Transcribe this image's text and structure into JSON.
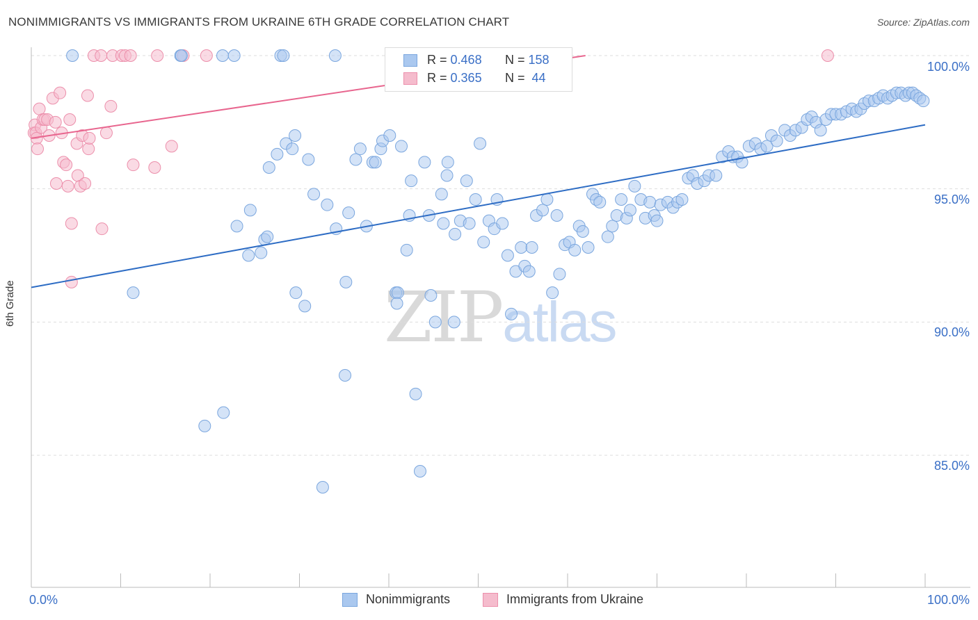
{
  "header": {
    "title": "NONIMMIGRANTS VS IMMIGRANTS FROM UKRAINE 6TH GRADE CORRELATION CHART",
    "source": "Source: ZipAtlas.com"
  },
  "watermark": {
    "zip": "ZIP",
    "atlas": "atlas"
  },
  "legend_top": {
    "rows": [
      {
        "r_label": "R =",
        "r_value": "0.468",
        "n_label": "N =",
        "n_value": "158"
      },
      {
        "r_label": "R =",
        "r_value": "0.365",
        "n_label": "N =",
        "n_value": "44"
      }
    ]
  },
  "legend_bottom": [
    "Nonimmigrants",
    "Immigrants from Ukraine"
  ],
  "colors": {
    "blue_fill": "#aac8ef",
    "blue_stroke": "#7aa6de",
    "blue_line": "#2d6cc4",
    "pink_fill": "#f5bccd",
    "pink_stroke": "#ec8fab",
    "pink_line": "#e8658e",
    "grid": "#dddddd",
    "tick_text": "#3a6fc6"
  },
  "chart_data": {
    "type": "scatter",
    "title": "NONIMMIGRANTS VS IMMIGRANTS FROM UKRAINE 6TH GRADE CORRELATION CHART",
    "xlabel": "",
    "ylabel": "6th Grade",
    "xlim": [
      0,
      100
    ],
    "ylim": [
      80.3,
      100.5
    ],
    "y_ticks": [
      85,
      90,
      95,
      100
    ],
    "y_tick_labels": [
      "85.0%",
      "90.0%",
      "95.0%",
      "100.0%"
    ],
    "x_tick_labels": [
      "0.0%",
      "100.0%"
    ],
    "legend_position": "top-center",
    "series": [
      {
        "name": "Nonimmigrants",
        "color": "#aac8ef",
        "r": 0.468,
        "n": 158,
        "trend": {
          "x": [
            0,
            100
          ],
          "y": [
            91.3,
            97.4
          ]
        },
        "points": [
          [
            4.6,
            100
          ],
          [
            16.7,
            100
          ],
          [
            16.8,
            100
          ],
          [
            21.4,
            100
          ],
          [
            22.7,
            100
          ],
          [
            27.9,
            100
          ],
          [
            28.2,
            100
          ],
          [
            34.0,
            100
          ],
          [
            11.4,
            91.1
          ],
          [
            19.4,
            86.1
          ],
          [
            21.5,
            86.6
          ],
          [
            23.0,
            93.6
          ],
          [
            24.3,
            92.5
          ],
          [
            24.5,
            94.2
          ],
          [
            25.7,
            92.6
          ],
          [
            26.1,
            93.1
          ],
          [
            26.4,
            93.2
          ],
          [
            26.6,
            95.8
          ],
          [
            27.5,
            96.3
          ],
          [
            28.5,
            96.7
          ],
          [
            29.2,
            96.5
          ],
          [
            29.5,
            97.0
          ],
          [
            29.6,
            91.1
          ],
          [
            30.6,
            90.6
          ],
          [
            31.0,
            96.1
          ],
          [
            31.6,
            94.8
          ],
          [
            32.6,
            83.8
          ],
          [
            33.1,
            94.4
          ],
          [
            34.1,
            93.5
          ],
          [
            35.1,
            88.0
          ],
          [
            35.2,
            91.5
          ],
          [
            35.5,
            94.1
          ],
          [
            36.3,
            96.1
          ],
          [
            36.8,
            96.5
          ],
          [
            37.5,
            93.6
          ],
          [
            38.2,
            96.0
          ],
          [
            38.5,
            96.0
          ],
          [
            39.1,
            96.5
          ],
          [
            39.3,
            96.8
          ],
          [
            40.1,
            97.0
          ],
          [
            40.8,
            91.1
          ],
          [
            41.0,
            91.1
          ],
          [
            40.9,
            90.7
          ],
          [
            41.4,
            96.6
          ],
          [
            42.0,
            92.7
          ],
          [
            42.3,
            94.0
          ],
          [
            42.5,
            95.3
          ],
          [
            43.0,
            87.3
          ],
          [
            43.5,
            84.4
          ],
          [
            44.0,
            96.0
          ],
          [
            44.5,
            94.0
          ],
          [
            44.7,
            91.0
          ],
          [
            45.2,
            90.0
          ],
          [
            45.9,
            94.8
          ],
          [
            46.1,
            93.7
          ],
          [
            46.5,
            95.5
          ],
          [
            46.6,
            96.0
          ],
          [
            47.3,
            90.0
          ],
          [
            47.4,
            93.3
          ],
          [
            48.0,
            93.8
          ],
          [
            48.7,
            95.3
          ],
          [
            49.0,
            93.7
          ],
          [
            49.7,
            94.6
          ],
          [
            50.2,
            96.7
          ],
          [
            50.6,
            93.0
          ],
          [
            51.2,
            93.8
          ],
          [
            51.8,
            93.5
          ],
          [
            52.1,
            94.6
          ],
          [
            52.7,
            93.7
          ],
          [
            53.3,
            92.5
          ],
          [
            53.7,
            90.3
          ],
          [
            54.2,
            91.9
          ],
          [
            54.8,
            92.8
          ],
          [
            55.2,
            92.1
          ],
          [
            55.7,
            91.9
          ],
          [
            56.0,
            92.8
          ],
          [
            56.5,
            94.0
          ],
          [
            57.2,
            94.2
          ],
          [
            57.7,
            94.6
          ],
          [
            58.3,
            91.1
          ],
          [
            58.8,
            94.0
          ],
          [
            59.1,
            91.8
          ],
          [
            59.7,
            92.9
          ],
          [
            60.2,
            93.0
          ],
          [
            60.8,
            92.7
          ],
          [
            61.3,
            93.6
          ],
          [
            61.7,
            93.4
          ],
          [
            62.3,
            92.8
          ],
          [
            62.8,
            94.8
          ],
          [
            63.2,
            94.6
          ],
          [
            63.6,
            94.5
          ],
          [
            64.5,
            93.2
          ],
          [
            65.0,
            93.6
          ],
          [
            65.5,
            94.0
          ],
          [
            66.0,
            94.6
          ],
          [
            66.6,
            93.9
          ],
          [
            67.0,
            94.2
          ],
          [
            67.5,
            95.1
          ],
          [
            68.2,
            94.6
          ],
          [
            68.7,
            93.9
          ],
          [
            69.2,
            94.5
          ],
          [
            69.7,
            94.0
          ],
          [
            70.0,
            93.8
          ],
          [
            70.4,
            94.4
          ],
          [
            71.2,
            94.5
          ],
          [
            71.8,
            94.3
          ],
          [
            72.3,
            94.5
          ],
          [
            72.8,
            94.6
          ],
          [
            73.5,
            95.4
          ],
          [
            74.0,
            95.5
          ],
          [
            74.5,
            95.2
          ],
          [
            75.3,
            95.3
          ],
          [
            75.8,
            95.5
          ],
          [
            76.6,
            95.5
          ],
          [
            77.3,
            96.2
          ],
          [
            78.0,
            96.4
          ],
          [
            78.5,
            96.2
          ],
          [
            79.0,
            96.2
          ],
          [
            79.5,
            96.0
          ],
          [
            80.3,
            96.6
          ],
          [
            81.0,
            96.7
          ],
          [
            81.6,
            96.5
          ],
          [
            82.3,
            96.6
          ],
          [
            82.8,
            97.0
          ],
          [
            83.4,
            96.8
          ],
          [
            84.3,
            97.2
          ],
          [
            84.9,
            97.0
          ],
          [
            85.5,
            97.2
          ],
          [
            86.2,
            97.3
          ],
          [
            86.8,
            97.6
          ],
          [
            87.3,
            97.7
          ],
          [
            87.8,
            97.5
          ],
          [
            88.3,
            97.2
          ],
          [
            88.9,
            97.6
          ],
          [
            89.5,
            97.8
          ],
          [
            90.0,
            97.8
          ],
          [
            90.6,
            97.8
          ],
          [
            91.2,
            97.9
          ],
          [
            91.8,
            98.0
          ],
          [
            92.3,
            97.9
          ],
          [
            92.8,
            98.0
          ],
          [
            93.2,
            98.2
          ],
          [
            93.7,
            98.3
          ],
          [
            94.3,
            98.3
          ],
          [
            94.8,
            98.4
          ],
          [
            95.3,
            98.5
          ],
          [
            95.8,
            98.4
          ],
          [
            96.3,
            98.5
          ],
          [
            96.8,
            98.6
          ],
          [
            97.3,
            98.6
          ],
          [
            97.8,
            98.5
          ],
          [
            98.2,
            98.6
          ],
          [
            98.6,
            98.6
          ],
          [
            99.0,
            98.5
          ],
          [
            99.4,
            98.4
          ],
          [
            99.8,
            98.3
          ]
        ]
      },
      {
        "name": "Immigrants from Ukraine",
        "color": "#f5bccd",
        "r": 0.365,
        "n": 44,
        "trend": {
          "x": [
            0,
            62
          ],
          "y": [
            96.9,
            100
          ]
        },
        "points": [
          [
            0.3,
            97.1
          ],
          [
            0.4,
            97.4
          ],
          [
            0.5,
            97.1
          ],
          [
            0.6,
            96.9
          ],
          [
            0.7,
            96.5
          ],
          [
            0.9,
            98.0
          ],
          [
            1.1,
            97.3
          ],
          [
            1.3,
            97.6
          ],
          [
            1.5,
            97.6
          ],
          [
            1.8,
            97.6
          ],
          [
            2.0,
            97.0
          ],
          [
            2.4,
            98.4
          ],
          [
            2.7,
            97.5
          ],
          [
            2.8,
            95.2
          ],
          [
            3.2,
            98.6
          ],
          [
            3.4,
            97.1
          ],
          [
            3.6,
            96.0
          ],
          [
            3.9,
            95.9
          ],
          [
            4.1,
            95.1
          ],
          [
            4.3,
            97.6
          ],
          [
            4.5,
            93.7
          ],
          [
            4.5,
            91.5
          ],
          [
            5.1,
            96.7
          ],
          [
            5.2,
            95.5
          ],
          [
            5.5,
            95.1
          ],
          [
            5.7,
            97.0
          ],
          [
            6.0,
            95.2
          ],
          [
            6.3,
            98.5
          ],
          [
            6.4,
            96.5
          ],
          [
            6.5,
            96.9
          ],
          [
            7.0,
            100
          ],
          [
            7.8,
            100
          ],
          [
            7.9,
            93.5
          ],
          [
            8.4,
            97.1
          ],
          [
            8.9,
            98.1
          ],
          [
            9.1,
            100
          ],
          [
            10.1,
            100
          ],
          [
            10.5,
            100
          ],
          [
            11.1,
            100
          ],
          [
            11.4,
            95.9
          ],
          [
            13.8,
            95.8
          ],
          [
            14.1,
            100
          ],
          [
            15.7,
            96.6
          ],
          [
            17.0,
            100
          ],
          [
            19.6,
            100
          ],
          [
            89.1,
            100
          ]
        ]
      }
    ]
  }
}
